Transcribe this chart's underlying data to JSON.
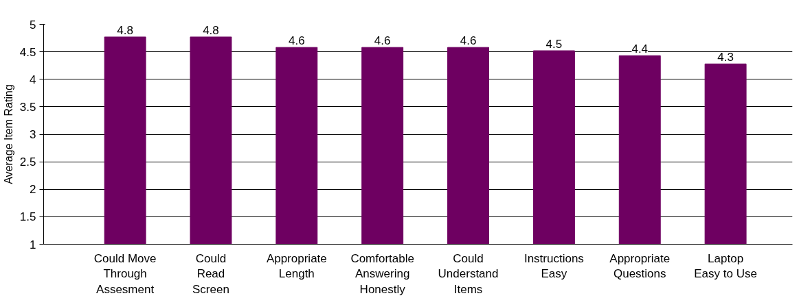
{
  "chart_data": {
    "type": "bar",
    "ylabel": "Average Item Rating",
    "categories": [
      "Could Move\nThrough\nAssesment",
      "Could\nRead\nScreen",
      "Appropriate\nLength",
      "Comfortable\nAnswering\nHonestly",
      "Could\nUnderstand\nItems",
      "Instructions\nEasy",
      "Appropriate\nQuestions",
      "Laptop\nEasy to Use"
    ],
    "values": [
      4.77,
      4.77,
      4.58,
      4.58,
      4.58,
      4.52,
      4.43,
      4.28
    ],
    "value_labels": [
      "4.8",
      "4.8",
      "4.6",
      "4.6",
      "4.6",
      "4.5",
      "4.4",
      "4.3"
    ],
    "color": "#6e0061",
    "ylim": [
      1,
      5
    ],
    "yticks": [
      1,
      1.5,
      2,
      2.5,
      3,
      3.5,
      4,
      4.5,
      5
    ],
    "grid": "y"
  }
}
